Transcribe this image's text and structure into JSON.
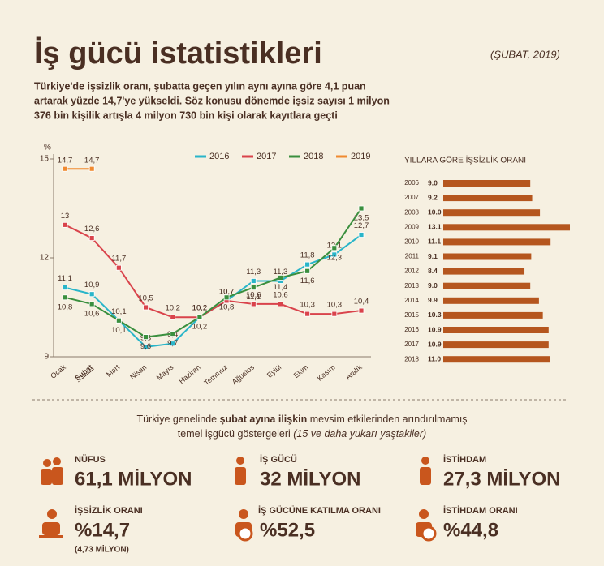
{
  "header": {
    "title": "İş gücü istatistikleri",
    "date": "(ŞUBAT, 2019)",
    "intro": [
      "Türkiye'de işsizlik oranı, şubatta geçen yılın aynı ayına göre 4,1 puan",
      "artarak yüzde 14,7'ye yükseldi. Söz konusu dönemde işsiz sayısı 1 milyon",
      "376 bin kişilik artışla 4 milyon 730 bin kişi olarak kayıtlara geçti"
    ]
  },
  "chart_data": [
    {
      "type": "line",
      "y_label": "%",
      "ylim": [
        9,
        15
      ],
      "yticks": [
        9,
        12,
        15
      ],
      "categories": [
        "Ocak",
        "Şubat",
        "Mart",
        "Nisan",
        "Mayıs",
        "Haziran",
        "Temmuz",
        "Ağustos",
        "Eylül",
        "Ekim",
        "Kasım",
        "Aralık"
      ],
      "series": [
        {
          "name": "2016",
          "color": "#29b5c9",
          "values": [
            11.1,
            10.9,
            10.1,
            9.3,
            9.4,
            10.2,
            10.7,
            11.3,
            11.3,
            11.8,
            12.1,
            12.7
          ],
          "value_labels": [
            "11,1",
            "10,9",
            "10,1",
            "9,3",
            "9,4",
            "10,2",
            "10,7",
            "11,3",
            "11,3",
            "11,8",
            "12,1",
            "12,7"
          ]
        },
        {
          "name": "2017",
          "color": "#d9434b",
          "values": [
            13,
            12.6,
            11.7,
            10.5,
            10.2,
            10.2,
            10.7,
            10.6,
            10.6,
            10.3,
            10.3,
            10.4
          ],
          "value_labels": [
            "13",
            "12,6",
            "11,7",
            "10,5",
            "10,2",
            "10,2",
            "10,7",
            "10,6",
            "10,6",
            "10,3",
            "10,3",
            "10,4"
          ]
        },
        {
          "name": "2018",
          "color": "#3a8f3e",
          "values": [
            10.8,
            10.6,
            10.1,
            9.6,
            9.7,
            10.2,
            10.8,
            11.1,
            11.4,
            11.6,
            12.3,
            13.5
          ],
          "value_labels": [
            "10,8",
            "10,6",
            "10,1",
            "9,6",
            "9,7",
            "10,2",
            "10,8",
            "11,1",
            "11,4",
            "11,6",
            "12,3",
            "13,5"
          ]
        },
        {
          "name": "2019",
          "color": "#f08a30",
          "values": [
            14.7,
            14.7,
            null,
            null,
            null,
            null,
            null,
            null,
            null,
            null,
            null,
            null
          ],
          "value_labels": [
            "14,7",
            "14,7",
            null,
            null,
            null,
            null,
            null,
            null,
            null,
            null,
            null,
            null
          ]
        }
      ]
    },
    {
      "type": "barh",
      "title": "YILLARA GÖRE İŞSİZLİK ORANI",
      "color": "#b5561e",
      "categories": [
        "2006",
        "2007",
        "2008",
        "2009",
        "2010",
        "2011",
        "2012",
        "2013",
        "2014",
        "2015",
        "2016",
        "2017",
        "2018"
      ],
      "values": [
        9.0,
        9.2,
        10.0,
        13.1,
        11.1,
        9.1,
        8.4,
        9.0,
        9.9,
        10.3,
        10.9,
        10.9,
        11.0
      ],
      "value_labels": [
        "9.0",
        "9.2",
        "10.0",
        "13.1",
        "11.1",
        "9.1",
        "8.4",
        "9.0",
        "9.9",
        "10.3",
        "10.9",
        "10.9",
        "11.0"
      ]
    }
  ],
  "indicators": {
    "heading": [
      [
        "Türkiye genelinde ",
        "şubat ayına ilişkin",
        " mevsim etkilerinden arındırılmamış"
      ],
      [
        "temel işgücü göstergeleri ",
        "(15 ve daha yukarı yaştakiler)"
      ]
    ],
    "items": [
      {
        "label": "NÜFUS",
        "value": "61,1 MİLYON"
      },
      {
        "label": "İŞ GÜCÜ",
        "value": "32 MİLYON"
      },
      {
        "label": "İSTİHDAM",
        "value": "27,3 MİLYON"
      },
      {
        "label": "İŞSİZLİK ORANI",
        "value": "%14,7",
        "note": "(4,73 MİLYON)"
      },
      {
        "label": "İŞ GÜCÜNE KATILMA ORANI",
        "value": "%52,5"
      },
      {
        "label": "İSTİHDAM ORANI",
        "value": "%44,8"
      }
    ]
  }
}
